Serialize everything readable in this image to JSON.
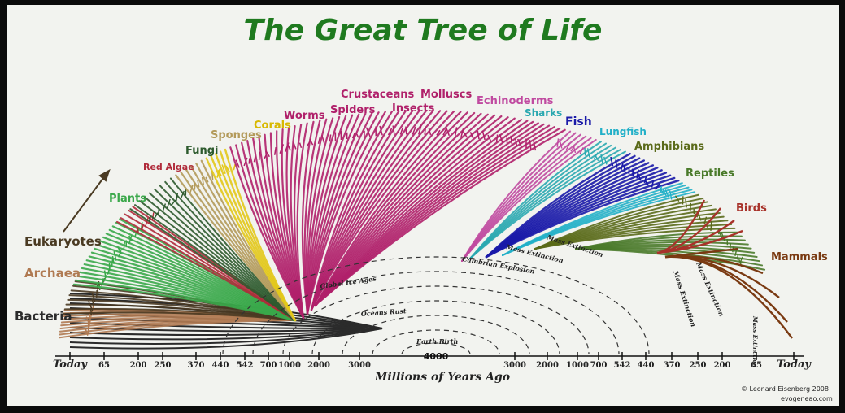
{
  "title": "The Great Tree of Life",
  "groups": [
    {
      "id": "bacteria",
      "label": "Bacteria",
      "color": "#2b2b2b"
    },
    {
      "id": "archaea",
      "label": "Archaea",
      "color": "#b07a52"
    },
    {
      "id": "eukaryotes",
      "label": "Eukaryotes",
      "color": "#4a3a22"
    },
    {
      "id": "plants",
      "label": "Plants",
      "color": "#3aa84a"
    },
    {
      "id": "red-algae",
      "label": "Red Algae",
      "color": "#b02a3a"
    },
    {
      "id": "fungi",
      "label": "Fungi",
      "color": "#2d5a2d"
    },
    {
      "id": "sponges",
      "label": "Sponges",
      "color": "#b39a5a"
    },
    {
      "id": "corals",
      "label": "Corals",
      "color": "#e2c81a"
    },
    {
      "id": "worms",
      "label": "Worms",
      "color": "#b0206a"
    },
    {
      "id": "spiders",
      "label": "Spiders",
      "color": "#b0206a"
    },
    {
      "id": "crustaceans",
      "label": "Crustaceans",
      "color": "#b0206a"
    },
    {
      "id": "insects",
      "label": "Insects",
      "color": "#b0206a"
    },
    {
      "id": "molluscs",
      "label": "Molluscs",
      "color": "#b0206a"
    },
    {
      "id": "echinoderms",
      "label": "Echinoderms",
      "color": "#c04aa0"
    },
    {
      "id": "sharks",
      "label": "Sharks",
      "color": "#2aa8b0"
    },
    {
      "id": "fish",
      "label": "Fish",
      "color": "#1a1aa8"
    },
    {
      "id": "lungfish",
      "label": "Lungfish",
      "color": "#22b0c8"
    },
    {
      "id": "amphibians",
      "label": "Amphibians",
      "color": "#5a6a1a"
    },
    {
      "id": "reptiles",
      "label": "Reptiles",
      "color": "#4a7a2a"
    },
    {
      "id": "birds",
      "label": "Birds",
      "color": "#a8322a"
    },
    {
      "id": "mammals",
      "label": "Mammals",
      "color": "#7a3a12"
    }
  ],
  "events": [
    "Mass Extinction",
    "Mass Extinction",
    "Cambrian Explosion",
    "Global Ice Ages",
    "Oceans Rust",
    "Earth Birth",
    "Mass Extinction",
    "Mass Extinction",
    "Mass Extinction"
  ],
  "axis": {
    "left_ticks": [
      "Today",
      "65",
      "200",
      "250",
      "370",
      "440",
      "542",
      "700",
      "1000",
      "2000",
      "3000"
    ],
    "center_value": "4000",
    "right_ticks": [
      "3000",
      "2000",
      "1000",
      "700",
      "542",
      "440",
      "370",
      "250",
      "200",
      "65",
      "Today"
    ],
    "label": "Millions of Years Ago"
  },
  "credit": {
    "line1": "© Leonard Eisenberg 2008",
    "line2": "evogeneao.com"
  },
  "colors": {
    "title": "#1f7a1f",
    "background": "#f2f3ef",
    "frame": "#0b0b0b",
    "trunk": "#2b2b2b"
  }
}
